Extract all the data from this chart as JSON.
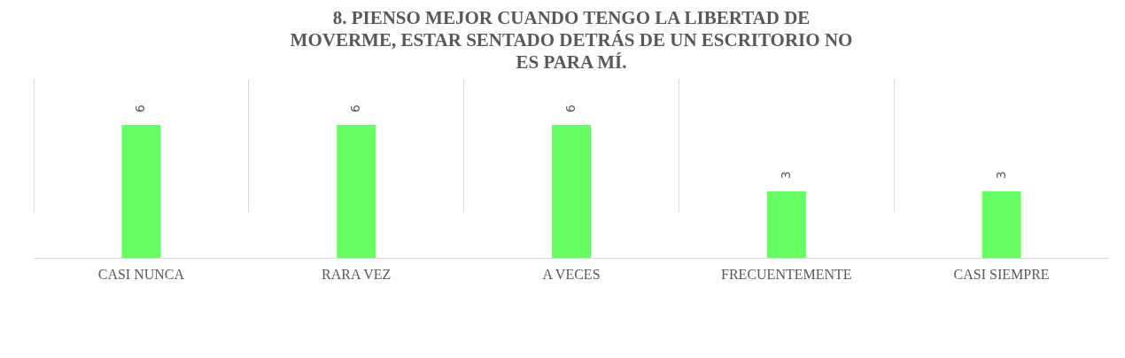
{
  "chart_data": {
    "type": "bar",
    "title": "8. PIENSO MEJOR CUANDO TENGO LA LIBERTAD DE MOVERME, ESTAR SENTADO DETRÁS DE UN ESCRITORIO NO ES PARA MÍ.",
    "categories": [
      "CASI NUNCA",
      "RARA VEZ",
      "A VECES",
      "FRECUENTEMENTE",
      "CASI SIEMPRE"
    ],
    "values": [
      6,
      6,
      6,
      3,
      3
    ],
    "color": "#66ff66",
    "data_labels": true,
    "grid": "x"
  }
}
